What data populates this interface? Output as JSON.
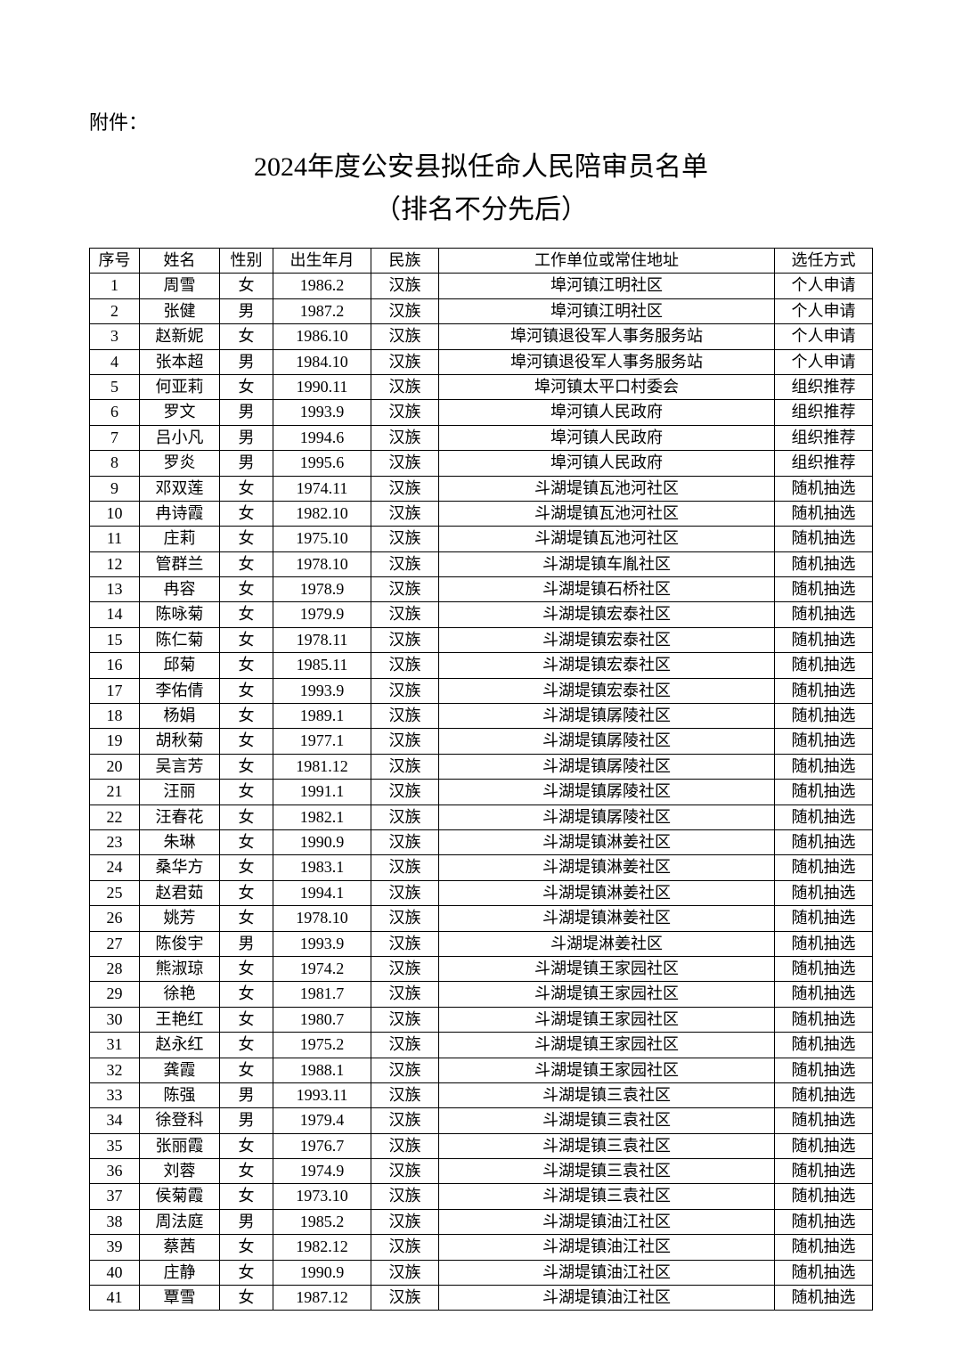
{
  "attachment_label": "附件：",
  "title": "2024年度公安县拟任命人民陪审员名单",
  "subtitle": "（排名不分先后）",
  "table": {
    "columns": [
      "序号",
      "姓名",
      "性别",
      "出生年月",
      "民族",
      "工作单位或常住地址",
      "选任方式"
    ],
    "rows": [
      [
        "1",
        "周雪",
        "女",
        "1986.2",
        "汉族",
        "埠河镇江明社区",
        "个人申请"
      ],
      [
        "2",
        "张健",
        "男",
        "1987.2",
        "汉族",
        "埠河镇江明社区",
        "个人申请"
      ],
      [
        "3",
        "赵新妮",
        "女",
        "1986.10",
        "汉族",
        "埠河镇退役军人事务服务站",
        "个人申请"
      ],
      [
        "4",
        "张本超",
        "男",
        "1984.10",
        "汉族",
        "埠河镇退役军人事务服务站",
        "个人申请"
      ],
      [
        "5",
        "何亚莉",
        "女",
        "1990.11",
        "汉族",
        "埠河镇太平口村委会",
        "组织推荐"
      ],
      [
        "6",
        "罗文",
        "男",
        "1993.9",
        "汉族",
        "埠河镇人民政府",
        "组织推荐"
      ],
      [
        "7",
        "吕小凡",
        "男",
        "1994.6",
        "汉族",
        "埠河镇人民政府",
        "组织推荐"
      ],
      [
        "8",
        "罗炎",
        "男",
        "1995.6",
        "汉族",
        "埠河镇人民政府",
        "组织推荐"
      ],
      [
        "9",
        "邓双莲",
        "女",
        "1974.11",
        "汉族",
        "斗湖堤镇瓦池河社区",
        "随机抽选"
      ],
      [
        "10",
        "冉诗霞",
        "女",
        "1982.10",
        "汉族",
        "斗湖堤镇瓦池河社区",
        "随机抽选"
      ],
      [
        "11",
        "庄莉",
        "女",
        "1975.10",
        "汉族",
        "斗湖堤镇瓦池河社区",
        "随机抽选"
      ],
      [
        "12",
        "管群兰",
        "女",
        "1978.10",
        "汉族",
        "斗湖堤镇车胤社区",
        "随机抽选"
      ],
      [
        "13",
        "冉容",
        "女",
        "1978.9",
        "汉族",
        "斗湖堤镇石桥社区",
        "随机抽选"
      ],
      [
        "14",
        "陈咏菊",
        "女",
        "1979.9",
        "汉族",
        "斗湖堤镇宏泰社区",
        "随机抽选"
      ],
      [
        "15",
        "陈仁菊",
        "女",
        "1978.11",
        "汉族",
        "斗湖堤镇宏泰社区",
        "随机抽选"
      ],
      [
        "16",
        "邱菊",
        "女",
        "1985.11",
        "汉族",
        "斗湖堤镇宏泰社区",
        "随机抽选"
      ],
      [
        "17",
        "李佑倩",
        "女",
        "1993.9",
        "汉族",
        "斗湖堤镇宏泰社区",
        "随机抽选"
      ],
      [
        "18",
        "杨娟",
        "女",
        "1989.1",
        "汉族",
        "斗湖堤镇孱陵社区",
        "随机抽选"
      ],
      [
        "19",
        "胡秋菊",
        "女",
        "1977.1",
        "汉族",
        "斗湖堤镇孱陵社区",
        "随机抽选"
      ],
      [
        "20",
        "吴言芳",
        "女",
        "1981.12",
        "汉族",
        "斗湖堤镇孱陵社区",
        "随机抽选"
      ],
      [
        "21",
        "汪丽",
        "女",
        "1991.1",
        "汉族",
        "斗湖堤镇孱陵社区",
        "随机抽选"
      ],
      [
        "22",
        "汪春花",
        "女",
        "1982.1",
        "汉族",
        "斗湖堤镇孱陵社区",
        "随机抽选"
      ],
      [
        "23",
        "朱琳",
        "女",
        "1990.9",
        "汉族",
        "斗湖堤镇淋姜社区",
        "随机抽选"
      ],
      [
        "24",
        "桑华方",
        "女",
        "1983.1",
        "汉族",
        "斗湖堤镇淋姜社区",
        "随机抽选"
      ],
      [
        "25",
        "赵君茹",
        "女",
        "1994.1",
        "汉族",
        "斗湖堤镇淋姜社区",
        "随机抽选"
      ],
      [
        "26",
        "姚芳",
        "女",
        "1978.10",
        "汉族",
        "斗湖堤镇淋姜社区",
        "随机抽选"
      ],
      [
        "27",
        "陈俊宇",
        "男",
        "1993.9",
        "汉族",
        "斗湖堤淋姜社区",
        "随机抽选"
      ],
      [
        "28",
        "熊淑琼",
        "女",
        "1974.2",
        "汉族",
        "斗湖堤镇王家园社区",
        "随机抽选"
      ],
      [
        "29",
        "徐艳",
        "女",
        "1981.7",
        "汉族",
        "斗湖堤镇王家园社区",
        "随机抽选"
      ],
      [
        "30",
        "王艳红",
        "女",
        "1980.7",
        "汉族",
        "斗湖堤镇王家园社区",
        "随机抽选"
      ],
      [
        "31",
        "赵永红",
        "女",
        "1975.2",
        "汉族",
        "斗湖堤镇王家园社区",
        "随机抽选"
      ],
      [
        "32",
        "龚霞",
        "女",
        "1988.1",
        "汉族",
        "斗湖堤镇王家园社区",
        "随机抽选"
      ],
      [
        "33",
        "陈强",
        "男",
        "1993.11",
        "汉族",
        "斗湖堤镇三袁社区",
        "随机抽选"
      ],
      [
        "34",
        "徐登科",
        "男",
        "1979.4",
        "汉族",
        "斗湖堤镇三袁社区",
        "随机抽选"
      ],
      [
        "35",
        "张丽霞",
        "女",
        "1976.7",
        "汉族",
        "斗湖堤镇三袁社区",
        "随机抽选"
      ],
      [
        "36",
        "刘蓉",
        "女",
        "1974.9",
        "汉族",
        "斗湖堤镇三袁社区",
        "随机抽选"
      ],
      [
        "37",
        "侯菊霞",
        "女",
        "1973.10",
        "汉族",
        "斗湖堤镇三袁社区",
        "随机抽选"
      ],
      [
        "38",
        "周法庭",
        "男",
        "1985.2",
        "汉族",
        "斗湖堤镇油江社区",
        "随机抽选"
      ],
      [
        "39",
        "蔡茜",
        "女",
        "1982.12",
        "汉族",
        "斗湖堤镇油江社区",
        "随机抽选"
      ],
      [
        "40",
        "庄静",
        "女",
        "1990.9",
        "汉族",
        "斗湖堤镇油江社区",
        "随机抽选"
      ],
      [
        "41",
        "覃雪",
        "女",
        "1987.12",
        "汉族",
        "斗湖堤镇油江社区",
        "随机抽选"
      ]
    ]
  },
  "styling": {
    "background_color": "#ffffff",
    "text_color": "#000000",
    "border_color": "#000000",
    "title_fontsize": 30,
    "body_fontsize": 18,
    "attachment_fontsize": 22,
    "font_family": "SimSun"
  }
}
